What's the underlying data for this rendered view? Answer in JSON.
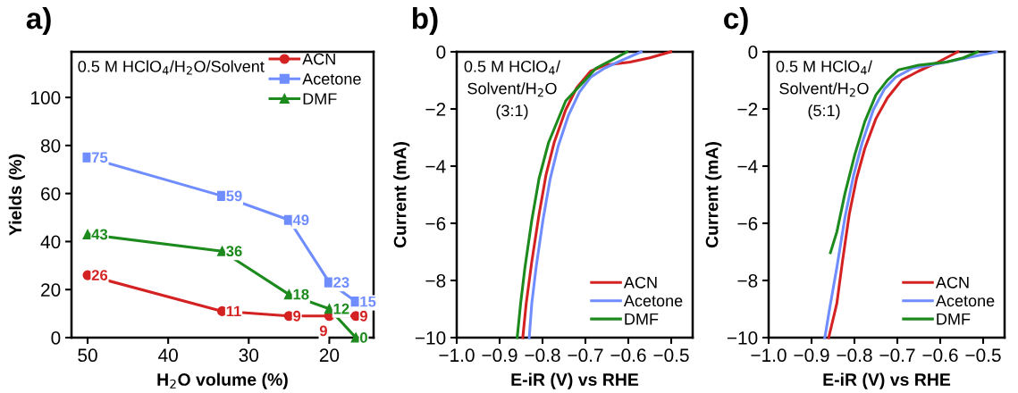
{
  "chart_data": [
    {
      "type": "line",
      "title": "a)",
      "xlabel": "H$_{2}$O volume (%)",
      "ylabel": "Yields (%)",
      "x": [
        50,
        33.3,
        25,
        20,
        16.7
      ],
      "xlim": [
        52,
        14.5
      ],
      "xticks": [
        50,
        40,
        30,
        20
      ],
      "ylim": [
        0,
        119
      ],
      "yticks": [
        0,
        20,
        40,
        60,
        80,
        100
      ],
      "legend": "top right",
      "data_labels": true,
      "grid": false,
      "line_style": "solid",
      "annotations": [
        "0.5 M HClO$_{4}$/H$_{2}$O/Solvent"
      ],
      "series": [
        {
          "name": "ACN",
          "color": "#d42222",
          "marker": "circle",
          "values": [
            26,
            11,
            9,
            9,
            9
          ]
        },
        {
          "name": "Acetone",
          "color": "#6f8dff",
          "marker": "square",
          "values": [
            75,
            59,
            49,
            23,
            15
          ]
        },
        {
          "name": "DMF",
          "color": "#1c8a1c",
          "marker": "triangle",
          "values": [
            43,
            36,
            18,
            12,
            0
          ]
        }
      ]
    },
    {
      "type": "line",
      "title": "b)",
      "xlabel": "E-iR (V) vs RHE",
      "ylabel": "Current (mA)",
      "xlim": [
        -1.0,
        -0.45
      ],
      "xticks": [
        {
          "value": -1.0,
          "label": "−1.0"
        },
        {
          "value": -0.9,
          "label": "−0.9"
        },
        {
          "value": -0.8,
          "label": "−0.8"
        },
        {
          "value": -0.7,
          "label": "−0.7"
        },
        {
          "value": -0.6,
          "label": "−0.6"
        },
        {
          "value": -0.5,
          "label": "−0.5"
        }
      ],
      "ylim": [
        -10,
        0
      ],
      "yticks": [
        {
          "value": -10,
          "label": "−10"
        },
        {
          "value": -8,
          "label": "−8"
        },
        {
          "value": -6,
          "label": "−6"
        },
        {
          "value": -4,
          "label": "−4"
        },
        {
          "value": -2,
          "label": "−2"
        },
        0
      ],
      "legend": "bottom right",
      "grid": false,
      "marker": "none",
      "line_style": "solid",
      "annotations": [
        "0.5 M HClO$_{4}$/\nSolvent/H$_{2}$O\n(3:1)"
      ],
      "series": [
        {
          "name": "ACN",
          "color": "#d42222",
          "x": [
            -0.501,
            -0.55,
            -0.596,
            -0.655,
            -0.688,
            -0.72,
            -0.746,
            -0.773,
            -0.792,
            -0.808,
            -0.825,
            -0.838,
            -0.846
          ],
          "values": [
            0,
            -0.21,
            -0.36,
            -0.47,
            -0.68,
            -1.25,
            -2.03,
            -3.18,
            -4.32,
            -5.68,
            -7.34,
            -8.8,
            -10
          ]
        },
        {
          "name": "Acetone",
          "color": "#6f8dff",
          "x": [
            -0.57,
            -0.61,
            -0.655,
            -0.688,
            -0.714,
            -0.74,
            -0.763,
            -0.782,
            -0.799,
            -0.815,
            -0.825,
            -0.831
          ],
          "values": [
            0,
            -0.26,
            -0.57,
            -0.89,
            -1.41,
            -2.24,
            -3.28,
            -4.43,
            -5.89,
            -7.55,
            -8.8,
            -10
          ]
        },
        {
          "name": "DMF",
          "color": "#1c8a1c",
          "x": [
            -0.603,
            -0.635,
            -0.675,
            -0.707,
            -0.746,
            -0.786,
            -0.808,
            -0.825,
            -0.841,
            -0.851,
            -0.859
          ],
          "values": [
            0,
            -0.26,
            -0.57,
            -1.09,
            -1.72,
            -3.18,
            -4.43,
            -5.89,
            -7.55,
            -8.8,
            -10
          ]
        }
      ]
    },
    {
      "type": "line",
      "title": "c)",
      "xlabel": "E-iR (V) vs RHE",
      "ylabel": "Current (mA)",
      "xlim": [
        -1.0,
        -0.45
      ],
      "xticks": [
        {
          "value": -1.0,
          "label": "−1.0"
        },
        {
          "value": -0.9,
          "label": "−0.9"
        },
        {
          "value": -0.8,
          "label": "−0.8"
        },
        {
          "value": -0.7,
          "label": "−0.7"
        },
        {
          "value": -0.6,
          "label": "−0.6"
        },
        {
          "value": -0.5,
          "label": "−0.5"
        }
      ],
      "ylim": [
        -10,
        0
      ],
      "yticks": [
        {
          "value": -10,
          "label": "−10"
        },
        {
          "value": -8,
          "label": "−8"
        },
        {
          "value": -6,
          "label": "−6"
        },
        {
          "value": -4,
          "label": "−4"
        },
        {
          "value": -2,
          "label": "−2"
        },
        0
      ],
      "legend": "bottom right",
      "grid": false,
      "marker": "none",
      "line_style": "solid",
      "annotations": [
        "0.5 M HClO$_{4}$/\nSolvent/H$_{2}$O\n(5:1)"
      ],
      "series": [
        {
          "name": "ACN",
          "color": "#d42222",
          "x": [
            -0.559,
            -0.605,
            -0.651,
            -0.69,
            -0.723,
            -0.75,
            -0.776,
            -0.795,
            -0.812,
            -0.828,
            -0.841,
            -0.86
          ],
          "values": [
            0,
            -0.36,
            -0.68,
            -0.99,
            -1.61,
            -2.34,
            -3.39,
            -4.43,
            -5.68,
            -7.34,
            -8.8,
            -10
          ]
        },
        {
          "name": "Acetone",
          "color": "#6f8dff",
          "x": [
            -0.469,
            -0.52,
            -0.586,
            -0.664,
            -0.704,
            -0.73,
            -0.756,
            -0.782,
            -0.802,
            -0.822,
            -0.841,
            -0.858,
            -0.869
          ],
          "values": [
            0,
            -0.16,
            -0.36,
            -0.57,
            -0.89,
            -1.3,
            -2.03,
            -3.18,
            -4.32,
            -5.78,
            -7.55,
            -9.0,
            -10
          ]
        },
        {
          "name": "DMF",
          "color": "#1c8a1c",
          "x": [
            -0.513,
            -0.546,
            -0.586,
            -0.651,
            -0.697,
            -0.723,
            -0.75,
            -0.776,
            -0.799,
            -0.822,
            -0.841,
            -0.856
          ],
          "values": [
            0,
            -0.21,
            -0.36,
            -0.47,
            -0.63,
            -0.99,
            -1.51,
            -2.45,
            -3.59,
            -4.95,
            -6.3,
            -7.03
          ]
        }
      ]
    }
  ]
}
